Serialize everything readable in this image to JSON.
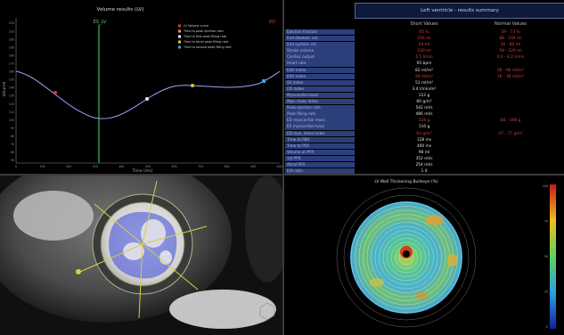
{
  "volume_panel": {
    "title": "Volume results (LV)",
    "x_axis_label": "Time (ms)",
    "y_axis_label": "Volume",
    "marker_label": "ES_LV",
    "marker_right_label": "ED",
    "legend": [
      {
        "label": "LV Volume curve",
        "color": "#d83a3a"
      },
      {
        "label": "Time to peak ejection rate",
        "color": "#d0a040"
      },
      {
        "label": "Time to first peak filling rate",
        "color": "#e8e8e8"
      },
      {
        "label": "Time to atrial peak filling rate",
        "color": "#e0c040"
      },
      {
        "label": "Time to second peak filling rate",
        "color": "#4aa0d8"
      }
    ],
    "x_ticks": [
      "0",
      "100",
      "200",
      "300",
      "400",
      "500",
      "600",
      "700",
      "800",
      "900",
      "1000"
    ],
    "y_ticks": [
      "50",
      "60",
      "70",
      "80",
      "90",
      "100",
      "110",
      "120",
      "130",
      "140",
      "150",
      "160",
      "170",
      "180",
      "190",
      "200",
      "210",
      "220"
    ]
  },
  "table_panel": {
    "title": "Left ventricle - results summary",
    "col1_header": "Short Values",
    "col2_header": "Normal Values",
    "rows": [
      {
        "label": "Ejection fraction",
        "v1": "65 %",
        "v2": "59 - 73 %",
        "c1": "red",
        "c2": "red"
      },
      {
        "label": "End diastolic vol.",
        "v1": "154 ml",
        "v2": "88 - 194 ml",
        "c1": "red",
        "c2": "red"
      },
      {
        "label": "End systolic vol.",
        "v1": "54 ml",
        "v2": "26 - 80 ml",
        "c1": "red",
        "c2": "red"
      },
      {
        "label": "Stroke volume",
        "v1": "100 ml",
        "v2": "58 - 120 ml",
        "c1": "red",
        "c2": "red"
      },
      {
        "label": "Cardiac output",
        "v1": "6.5 l/min",
        "v2": "4.0 - 8.2 l/min",
        "c1": "red",
        "c2": "red"
      },
      {
        "label": "Heart rate",
        "v1": "65 bpm",
        "v2": "",
        "c1": "wht",
        "c2": "wht"
      },
      {
        "label": "EDV index",
        "v1": "82 ml/m²",
        "v2": "56 - 96 ml/m²",
        "c1": "wht",
        "c2": "red"
      },
      {
        "label": "ESV index",
        "v1": "29 ml/m²",
        "v2": "16 - 38 ml/m²",
        "c1": "red",
        "c2": "red"
      },
      {
        "label": "SV index",
        "v1": "53 ml/m²",
        "v2": "",
        "c1": "wht",
        "c2": "wht"
      },
      {
        "label": "CO index",
        "v1": "3.4 l/min/m²",
        "v2": "",
        "c1": "wht",
        "c2": "wht"
      },
      {
        "label": "Myocardial mass",
        "v1": "112 g",
        "v2": "",
        "c1": "wht",
        "c2": "wht"
      },
      {
        "label": "Myo. mass index",
        "v1": "60 g/m²",
        "v2": "",
        "c1": "wht",
        "c2": "wht"
      },
      {
        "label": "Peak ejection rate",
        "v1": "542 ml/s",
        "v2": "",
        "c1": "wht",
        "c2": "wht"
      },
      {
        "label": "Peak filling rate",
        "v1": "486 ml/s",
        "v2": "",
        "c1": "wht",
        "c2": "wht"
      },
      {
        "label": "ED myocardial mass",
        "v1": "118 g",
        "v2": "88 - 168 g",
        "c1": "red",
        "c2": "red"
      },
      {
        "label": "ES myocardial mass",
        "v1": "116 g",
        "v2": "",
        "c1": "wht",
        "c2": "wht"
      },
      {
        "label": "ED myo. mass index",
        "v1": "63 g/m²",
        "v2": "47 - 77 g/m²",
        "c1": "red",
        "c2": "red"
      },
      {
        "label": "Time to PER",
        "v1": "128 ms",
        "v2": "",
        "c1": "wht",
        "c2": "wht"
      },
      {
        "label": "Time to PFR",
        "v1": "460 ms",
        "v2": "",
        "c1": "wht",
        "c2": "wht"
      },
      {
        "label": "Volume at PFR",
        "v1": "98 ml",
        "v2": "",
        "c1": "wht",
        "c2": "wht"
      },
      {
        "label": "1st PFR",
        "v1": "352 ml/s",
        "v2": "",
        "c1": "wht",
        "c2": "wht"
      },
      {
        "label": "Atrial PFR",
        "v1": "254 ml/s",
        "v2": "",
        "c1": "wht",
        "c2": "wht"
      },
      {
        "label": "E/A ratio",
        "v1": "1.4",
        "v2": "",
        "c1": "wht",
        "c2": "wht"
      },
      {
        "label": "Filling fraction",
        "v1": "72% of diastolic",
        "v2": "",
        "c1": "wht",
        "c2": "wht"
      },
      {
        "label": "Cycle",
        "v1": "921 ms",
        "v2": "",
        "c1": "wht",
        "c2": "wht"
      }
    ]
  },
  "bullseye_panel": {
    "title": "LV Wall Thickening Bullseye (%)",
    "scale_ticks": [
      "100",
      "75",
      "50",
      "25",
      "0"
    ]
  },
  "colors": {
    "curve": "#9aa4ff",
    "marker_line": "#2f8a4a",
    "table_label_bg": "#2d3f7a",
    "value_red": "#d04040"
  }
}
